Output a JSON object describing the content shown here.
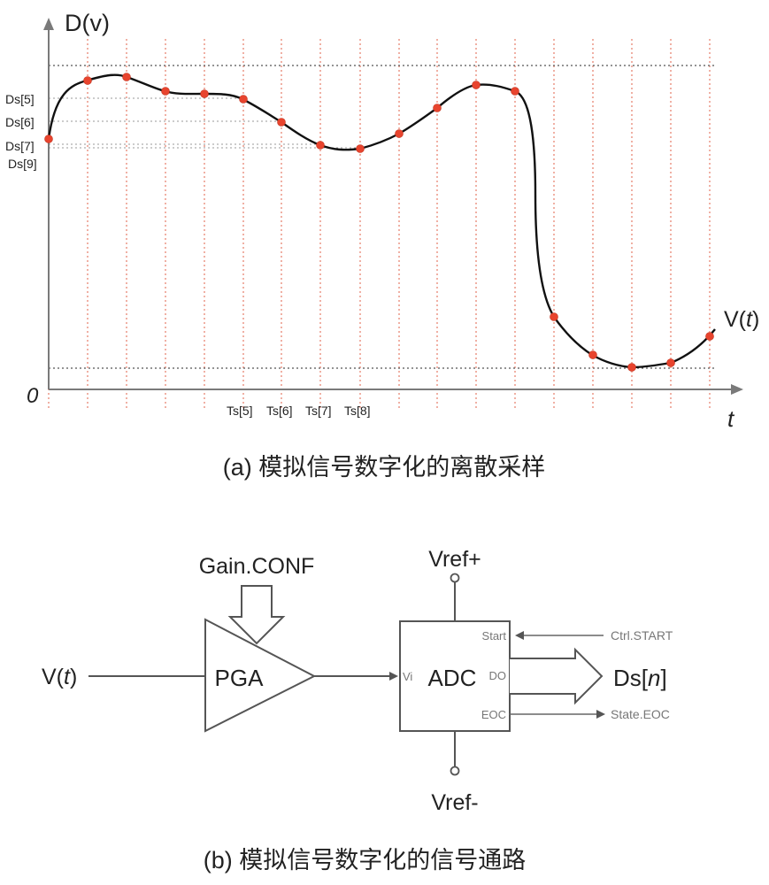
{
  "panel_a": {
    "y_axis_label": "D(v)",
    "origin_label": "0",
    "x_axis_label": "t",
    "curve_label_main": "V(",
    "curve_label_var": "t",
    "curve_label_close": ")",
    "y_tick_labels": [
      "Ds[5]",
      "Ds[6]",
      "Ds[7]",
      "Ds[9]"
    ],
    "x_tick_labels": [
      "Ts[5]",
      "Ts[6]",
      "Ts[7]",
      "Ts[8]"
    ],
    "caption": "(a) 模拟信号数字化的离散采样",
    "colors": {
      "sample_point": "#e8442e",
      "sample_line": "#e0604a",
      "curve": "#111111"
    }
  },
  "panel_b": {
    "input_label_main": "V(",
    "input_label_var": "t",
    "input_label_close": ")",
    "gain_label": "Gain.CONF",
    "pga_label": "PGA",
    "adc_label": "ADC",
    "vref_plus": "Vref+",
    "vref_minus": "Vref-",
    "pin_vi": "Vi",
    "pin_start": "Start",
    "pin_do": "DO",
    "pin_eoc": "EOC",
    "ctrl_start": "Ctrl.START",
    "state_eoc": "State.EOC",
    "output_main": "Ds[",
    "output_var": "n",
    "output_close": "]",
    "caption": "(b) 模拟信号数字化的信号通路"
  }
}
